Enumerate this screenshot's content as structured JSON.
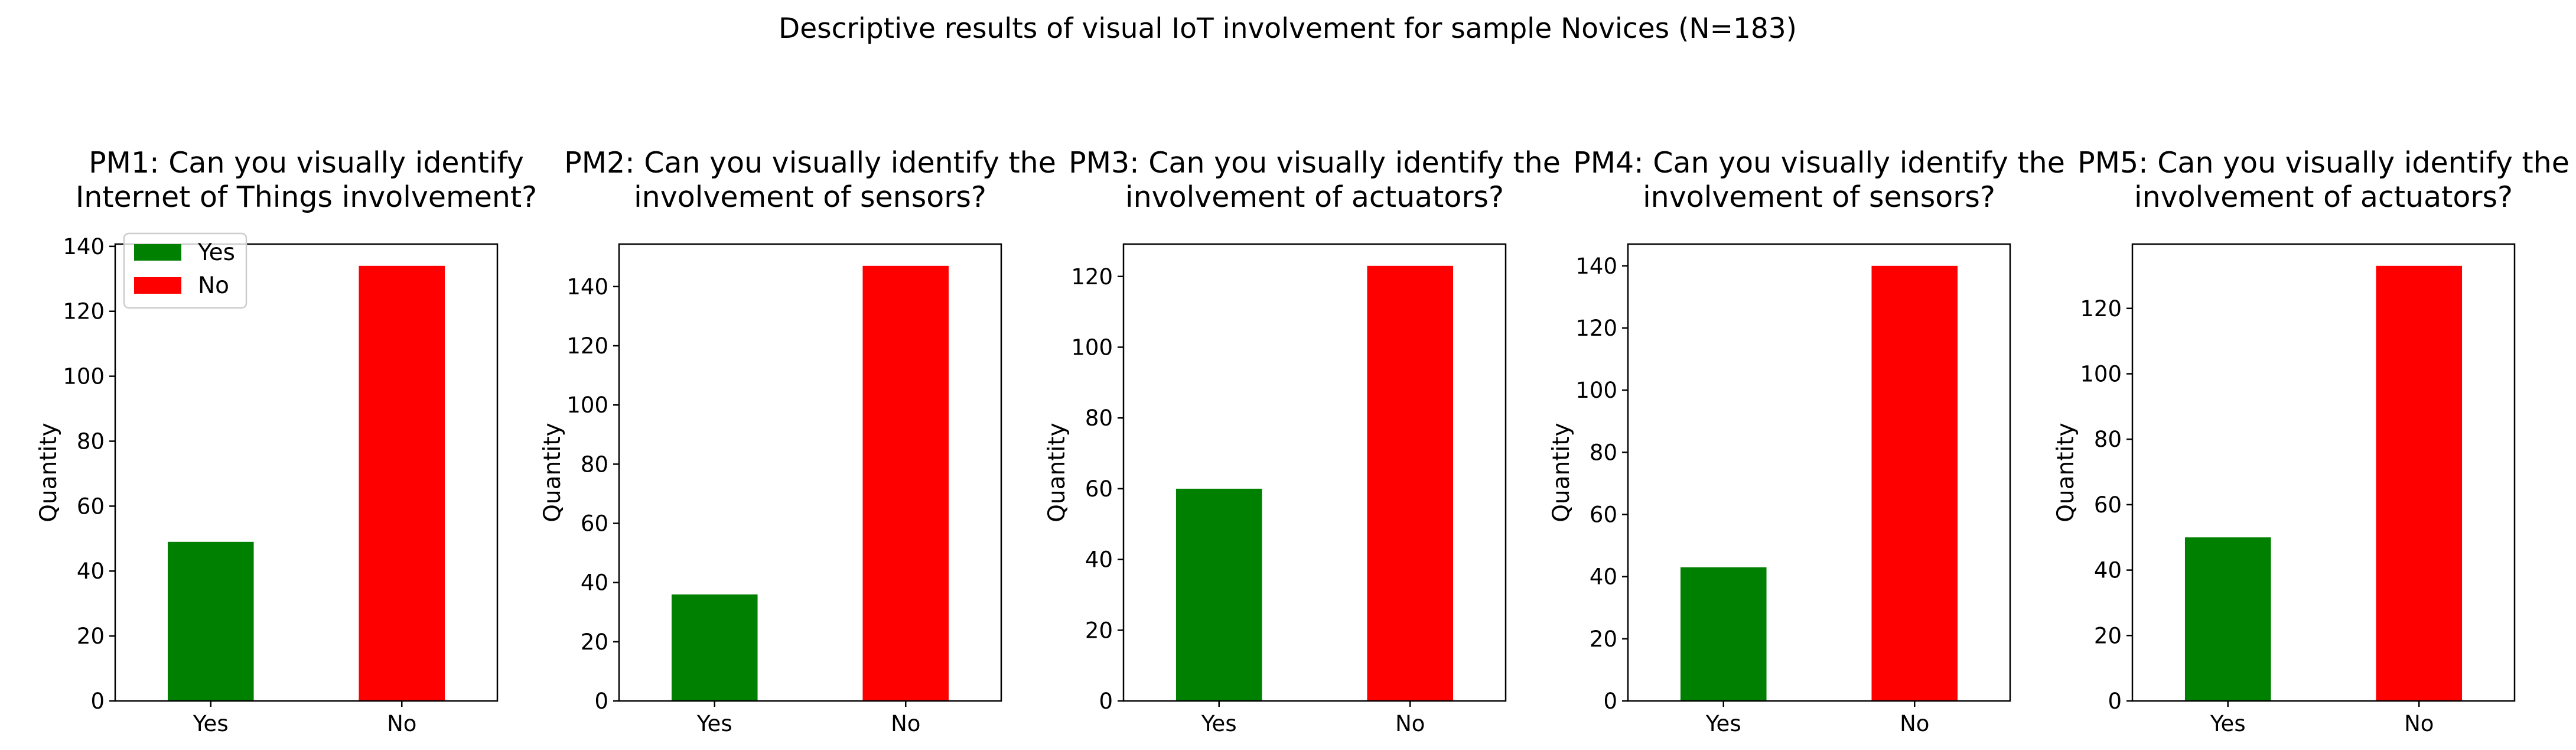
{
  "suptitle": "Descriptive results of visual IoT involvement for sample Novices (N=183)",
  "colors": {
    "Yes": "#008000",
    "No": "#ff0000"
  },
  "chart_data": [
    {
      "type": "bar",
      "title_lines": [
        "PM1: Can you visually identify",
        "Internet of Things involvement?"
      ],
      "categories": [
        "Yes",
        "No"
      ],
      "values": [
        49,
        134
      ],
      "ylabel": "Quantity",
      "xlabel": "",
      "ylim": [
        0,
        140.7
      ],
      "yticks": [
        0,
        20,
        40,
        60,
        80,
        100,
        120,
        140
      ],
      "legend": {
        "placement": "upper-left",
        "entries": [
          "Yes",
          "No"
        ]
      }
    },
    {
      "type": "bar",
      "title_lines": [
        "PM2: Can you visually identify the",
        "involvement of sensors?"
      ],
      "categories": [
        "Yes",
        "No"
      ],
      "values": [
        36,
        147
      ],
      "ylabel": "Quantity",
      "xlabel": "",
      "ylim": [
        0,
        154.35
      ],
      "yticks": [
        0,
        20,
        40,
        60,
        80,
        100,
        120,
        140
      ]
    },
    {
      "type": "bar",
      "title_lines": [
        "PM3: Can you visually identify the",
        "involvement of actuators?"
      ],
      "categories": [
        "Yes",
        "No"
      ],
      "values": [
        60,
        123
      ],
      "ylabel": "Quantity",
      "xlabel": "",
      "ylim": [
        0,
        129.15
      ],
      "yticks": [
        0,
        20,
        40,
        60,
        80,
        100,
        120
      ]
    },
    {
      "type": "bar",
      "title_lines": [
        "PM4: Can you visually identify the",
        "involvement of sensors?"
      ],
      "categories": [
        "Yes",
        "No"
      ],
      "values": [
        43,
        140
      ],
      "ylabel": "Quantity",
      "xlabel": "",
      "ylim": [
        0,
        147
      ],
      "yticks": [
        0,
        20,
        40,
        60,
        80,
        100,
        120,
        140
      ]
    },
    {
      "type": "bar",
      "title_lines": [
        "PM5: Can you visually identify the",
        "involvement of actuators?"
      ],
      "categories": [
        "Yes",
        "No"
      ],
      "values": [
        50,
        133
      ],
      "ylabel": "Quantity",
      "xlabel": "",
      "ylim": [
        0,
        139.65
      ],
      "yticks": [
        0,
        20,
        40,
        60,
        80,
        100,
        120
      ]
    }
  ]
}
